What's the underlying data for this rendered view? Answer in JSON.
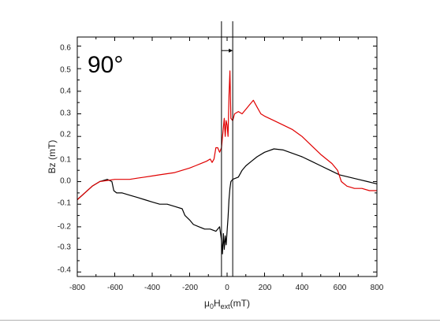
{
  "chart_data": {
    "type": "line",
    "annotation": "90°",
    "xlabel": {
      "main": "μ",
      "sub1": "0",
      "mid": "H",
      "sub2": "ext",
      "unit": "(mT)"
    },
    "ylabel": "Bz (mT)",
    "xlim": [
      -800,
      800
    ],
    "ylim": [
      -0.42,
      0.64
    ],
    "x_ticks": [
      -800,
      -600,
      -400,
      -200,
      0,
      200,
      400,
      600,
      800
    ],
    "y_ticks": [
      0.6,
      0.5,
      0.4,
      0.3,
      0.2,
      0.1,
      0.0,
      -0.1,
      -0.2,
      -0.3,
      -0.4
    ],
    "x_tick_labels": [
      "-800",
      "-600",
      "-400",
      "-200",
      "0",
      "200",
      "400",
      "600",
      "800"
    ],
    "y_tick_labels": [
      "0.6",
      "0.5",
      "0.4",
      "0.3",
      "0.2",
      "0.1",
      "0.0",
      "-0.1",
      "-0.2",
      "-0.3",
      "-0.4"
    ],
    "grid": false,
    "legend": false,
    "vertical_markers": [
      -30,
      30
    ],
    "arrow": {
      "from": -30,
      "to": 30,
      "y": 0.58
    },
    "series": [
      {
        "color": "#000000",
        "points": [
          [
            -800,
            -0.08
          ],
          [
            -760,
            -0.05
          ],
          [
            -720,
            -0.02
          ],
          [
            -680,
            0.0
          ],
          [
            -640,
            0.01
          ],
          [
            -615,
            0.0
          ],
          [
            -605,
            -0.04
          ],
          [
            -590,
            -0.05
          ],
          [
            -560,
            -0.05
          ],
          [
            -520,
            -0.06
          ],
          [
            -480,
            -0.07
          ],
          [
            -440,
            -0.08
          ],
          [
            -400,
            -0.09
          ],
          [
            -360,
            -0.1
          ],
          [
            -320,
            -0.1
          ],
          [
            -280,
            -0.11
          ],
          [
            -240,
            -0.12
          ],
          [
            -225,
            -0.15
          ],
          [
            -200,
            -0.17
          ],
          [
            -180,
            -0.19
          ],
          [
            -150,
            -0.2
          ],
          [
            -120,
            -0.21
          ],
          [
            -90,
            -0.21
          ],
          [
            -60,
            -0.22
          ],
          [
            -40,
            -0.2
          ],
          [
            -30,
            -0.26
          ],
          [
            -25,
            -0.32
          ],
          [
            -20,
            -0.23
          ],
          [
            -15,
            -0.3
          ],
          [
            -10,
            -0.24
          ],
          [
            -5,
            -0.28
          ],
          [
            0,
            -0.22
          ],
          [
            5,
            -0.16
          ],
          [
            10,
            -0.08
          ],
          [
            15,
            -0.03
          ],
          [
            20,
            0.0
          ],
          [
            30,
            0.01
          ],
          [
            60,
            0.02
          ],
          [
            80,
            0.05
          ],
          [
            100,
            0.07
          ],
          [
            130,
            0.09
          ],
          [
            160,
            0.11
          ],
          [
            200,
            0.13
          ],
          [
            250,
            0.145
          ],
          [
            300,
            0.14
          ],
          [
            350,
            0.125
          ],
          [
            400,
            0.11
          ],
          [
            450,
            0.09
          ],
          [
            500,
            0.07
          ],
          [
            550,
            0.05
          ],
          [
            600,
            0.03
          ],
          [
            650,
            0.02
          ],
          [
            700,
            0.01
          ],
          [
            750,
            0.0
          ],
          [
            800,
            -0.01
          ]
        ]
      },
      {
        "color": "#e00000",
        "points": [
          [
            -800,
            -0.08
          ],
          [
            -760,
            -0.05
          ],
          [
            -720,
            -0.02
          ],
          [
            -680,
            0.0
          ],
          [
            -640,
            0.005
          ],
          [
            -600,
            0.01
          ],
          [
            -560,
            0.01
          ],
          [
            -520,
            0.01
          ],
          [
            -480,
            0.015
          ],
          [
            -440,
            0.02
          ],
          [
            -400,
            0.025
          ],
          [
            -360,
            0.03
          ],
          [
            -320,
            0.035
          ],
          [
            -280,
            0.04
          ],
          [
            -240,
            0.05
          ],
          [
            -200,
            0.06
          ],
          [
            -170,
            0.07
          ],
          [
            -140,
            0.08
          ],
          [
            -110,
            0.09
          ],
          [
            -90,
            0.1
          ],
          [
            -80,
            0.085
          ],
          [
            -70,
            0.1
          ],
          [
            -60,
            0.15
          ],
          [
            -50,
            0.15
          ],
          [
            -40,
            0.13
          ],
          [
            -30,
            0.15
          ],
          [
            -20,
            0.24
          ],
          [
            -15,
            0.28
          ],
          [
            -10,
            0.2
          ],
          [
            -5,
            0.27
          ],
          [
            0,
            0.25
          ],
          [
            5,
            0.2
          ],
          [
            10,
            0.38
          ],
          [
            15,
            0.49
          ],
          [
            20,
            0.28
          ],
          [
            30,
            0.27
          ],
          [
            40,
            0.3
          ],
          [
            60,
            0.31
          ],
          [
            80,
            0.3
          ],
          [
            100,
            0.32
          ],
          [
            120,
            0.34
          ],
          [
            140,
            0.36
          ],
          [
            160,
            0.33
          ],
          [
            180,
            0.3
          ],
          [
            200,
            0.29
          ],
          [
            250,
            0.27
          ],
          [
            300,
            0.25
          ],
          [
            350,
            0.23
          ],
          [
            400,
            0.2
          ],
          [
            450,
            0.16
          ],
          [
            500,
            0.12
          ],
          [
            560,
            0.08
          ],
          [
            590,
            0.05
          ],
          [
            610,
            0.0
          ],
          [
            640,
            -0.02
          ],
          [
            680,
            -0.03
          ],
          [
            720,
            -0.03
          ],
          [
            760,
            -0.04
          ],
          [
            800,
            -0.04
          ]
        ]
      }
    ]
  }
}
